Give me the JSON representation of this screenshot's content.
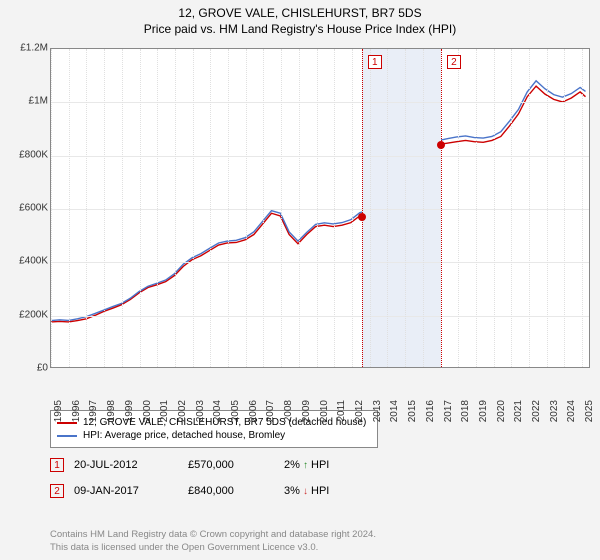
{
  "title_line1": "12, GROVE VALE, CHISLEHURST, BR7 5DS",
  "title_line2": "Price paid vs. HM Land Registry's House Price Index (HPI)",
  "chart": {
    "type": "line",
    "background_color": "#ffffff",
    "grid_color": "#e8e8e8",
    "border_color": "#888888",
    "x_years": [
      1995,
      1996,
      1997,
      1998,
      1999,
      2000,
      2001,
      2002,
      2003,
      2004,
      2005,
      2006,
      2007,
      2008,
      2009,
      2010,
      2011,
      2012,
      2013,
      2014,
      2015,
      2016,
      2017,
      2018,
      2019,
      2020,
      2021,
      2022,
      2023,
      2024,
      2025
    ],
    "xlim": [
      1995,
      2025.5
    ],
    "ylim": [
      0,
      1200000
    ],
    "yticks": [
      0,
      200000,
      400000,
      600000,
      800000,
      1000000,
      1200000
    ],
    "ytick_labels": [
      "£0",
      "£200K",
      "£400K",
      "£600K",
      "£800K",
      "£1M",
      "£1.2M"
    ],
    "series": [
      {
        "name": "property",
        "color": "#cc0000",
        "width": 1.4,
        "points": [
          [
            1995,
            170000
          ],
          [
            1995.5,
            172000
          ],
          [
            1996,
            170000
          ],
          [
            1996.5,
            175000
          ],
          [
            1997,
            182000
          ],
          [
            1997.5,
            195000
          ],
          [
            1998,
            210000
          ],
          [
            1998.5,
            222000
          ],
          [
            1999,
            235000
          ],
          [
            1999.5,
            255000
          ],
          [
            2000,
            280000
          ],
          [
            2000.5,
            300000
          ],
          [
            2001,
            310000
          ],
          [
            2001.5,
            322000
          ],
          [
            2002,
            345000
          ],
          [
            2002.5,
            380000
          ],
          [
            2003,
            405000
          ],
          [
            2003.5,
            420000
          ],
          [
            2004,
            440000
          ],
          [
            2004.5,
            460000
          ],
          [
            2005,
            468000
          ],
          [
            2005.5,
            470000
          ],
          [
            2006,
            480000
          ],
          [
            2006.5,
            500000
          ],
          [
            2007,
            540000
          ],
          [
            2007.5,
            580000
          ],
          [
            2008,
            570000
          ],
          [
            2008.5,
            500000
          ],
          [
            2009,
            465000
          ],
          [
            2009.5,
            500000
          ],
          [
            2010,
            530000
          ],
          [
            2010.5,
            535000
          ],
          [
            2011,
            530000
          ],
          [
            2011.5,
            535000
          ],
          [
            2012,
            545000
          ],
          [
            2012.5,
            570000
          ],
          [
            2013,
            580000
          ],
          [
            2013.5,
            600000
          ],
          [
            2014,
            650000
          ],
          [
            2014.5,
            700000
          ],
          [
            2015,
            745000
          ],
          [
            2015.5,
            770000
          ],
          [
            2016,
            810000
          ],
          [
            2016.5,
            835000
          ],
          [
            2017,
            840000
          ],
          [
            2017.5,
            845000
          ],
          [
            2018,
            850000
          ],
          [
            2018.5,
            855000
          ],
          [
            2019,
            850000
          ],
          [
            2019.5,
            848000
          ],
          [
            2020,
            855000
          ],
          [
            2020.5,
            870000
          ],
          [
            2021,
            910000
          ],
          [
            2021.5,
            955000
          ],
          [
            2022,
            1020000
          ],
          [
            2022.5,
            1060000
          ],
          [
            2023,
            1030000
          ],
          [
            2023.5,
            1010000
          ],
          [
            2024,
            1000000
          ],
          [
            2024.5,
            1015000
          ],
          [
            2025,
            1038000
          ],
          [
            2025.3,
            1020000
          ]
        ]
      },
      {
        "name": "hpi",
        "color": "#4a74c9",
        "width": 1.4,
        "points": [
          [
            1995,
            175000
          ],
          [
            1995.5,
            178000
          ],
          [
            1996,
            176000
          ],
          [
            1996.5,
            182000
          ],
          [
            1997,
            190000
          ],
          [
            1997.5,
            202000
          ],
          [
            1998,
            215000
          ],
          [
            1998.5,
            228000
          ],
          [
            1999,
            240000
          ],
          [
            1999.5,
            260000
          ],
          [
            2000,
            285000
          ],
          [
            2000.5,
            305000
          ],
          [
            2001,
            316000
          ],
          [
            2001.5,
            328000
          ],
          [
            2002,
            352000
          ],
          [
            2002.5,
            388000
          ],
          [
            2003,
            412000
          ],
          [
            2003.5,
            428000
          ],
          [
            2004,
            448000
          ],
          [
            2004.5,
            468000
          ],
          [
            2005,
            475000
          ],
          [
            2005.5,
            478000
          ],
          [
            2006,
            488000
          ],
          [
            2006.5,
            510000
          ],
          [
            2007,
            550000
          ],
          [
            2007.5,
            590000
          ],
          [
            2008,
            580000
          ],
          [
            2008.5,
            510000
          ],
          [
            2009,
            475000
          ],
          [
            2009.5,
            508000
          ],
          [
            2010,
            538000
          ],
          [
            2010.5,
            544000
          ],
          [
            2011,
            540000
          ],
          [
            2011.5,
            545000
          ],
          [
            2012,
            556000
          ],
          [
            2012.5,
            582000
          ],
          [
            2013,
            592000
          ],
          [
            2013.5,
            614000
          ],
          [
            2014,
            665000
          ],
          [
            2014.5,
            715000
          ],
          [
            2015,
            760000
          ],
          [
            2015.5,
            785000
          ],
          [
            2016,
            825000
          ],
          [
            2016.5,
            850000
          ],
          [
            2017,
            855000
          ],
          [
            2017.5,
            862000
          ],
          [
            2018,
            868000
          ],
          [
            2018.5,
            872000
          ],
          [
            2019,
            866000
          ],
          [
            2019.5,
            864000
          ],
          [
            2020,
            870000
          ],
          [
            2020.5,
            888000
          ],
          [
            2021,
            928000
          ],
          [
            2021.5,
            972000
          ],
          [
            2022,
            1038000
          ],
          [
            2022.5,
            1080000
          ],
          [
            2023,
            1050000
          ],
          [
            2023.5,
            1028000
          ],
          [
            2024,
            1018000
          ],
          [
            2024.5,
            1032000
          ],
          [
            2025,
            1055000
          ],
          [
            2025.3,
            1040000
          ]
        ]
      }
    ],
    "shaded_region": {
      "from": 2012.55,
      "to": 2017.02,
      "color": "#e9eef7"
    },
    "sale_markers": [
      {
        "label": "1",
        "x": 2012.55,
        "y": 570000,
        "line_color": "#cc0000"
      },
      {
        "label": "2",
        "x": 2017.02,
        "y": 840000,
        "line_color": "#cc0000"
      }
    ]
  },
  "legend": {
    "items": [
      {
        "label": "12, GROVE VALE, CHISLEHURST, BR7 5DS (detached house)",
        "color": "#cc0000"
      },
      {
        "label": "HPI: Average price, detached house, Bromley",
        "color": "#4a74c9"
      }
    ]
  },
  "transactions": [
    {
      "marker": "1",
      "date": "20-JUL-2012",
      "price": "£570,000",
      "pct": "2%",
      "direction": "up",
      "suffix": "HPI"
    },
    {
      "marker": "2",
      "date": "09-JAN-2017",
      "price": "£840,000",
      "pct": "3%",
      "direction": "down",
      "suffix": "HPI"
    }
  ],
  "footer_line1": "Contains HM Land Registry data © Crown copyright and database right 2024.",
  "footer_line2": "This data is licensed under the Open Government Licence v3.0.",
  "colors": {
    "up_arrow": "#2a8a2a",
    "down_arrow": "#cc3333",
    "text": "#222222",
    "footer": "#888888"
  }
}
